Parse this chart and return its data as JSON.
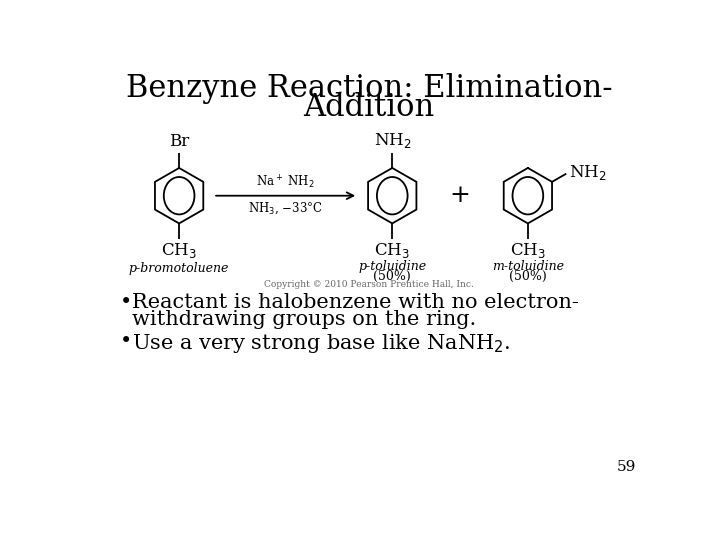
{
  "title_line1": "Benzyne Reaction: Elimination-",
  "title_line2": "Addition",
  "title_fontsize": 22,
  "title_font": "serif",
  "bullet1_line1": "Reactant is halobenzene with no electron-",
  "bullet1_line2": "withdrawing groups on the ring.",
  "bullet2": "Use a very strong base like NaNH$_2$.",
  "bullet_fontsize": 15,
  "page_number": "59",
  "background_color": "#ffffff",
  "text_color": "#000000",
  "copyright": "Copyright © 2010 Pearson Prentice Hall, Inc.",
  "arrow_label_above": "Na⁺ NH₂",
  "arrow_label_below": "NH₃, −33°C",
  "mol1_label": "p-bromotoluene",
  "mol2_label": "p-toluidine",
  "mol2_pct": "(50%)",
  "mol3_label": "m-toluidine",
  "mol3_pct": "(50%)"
}
